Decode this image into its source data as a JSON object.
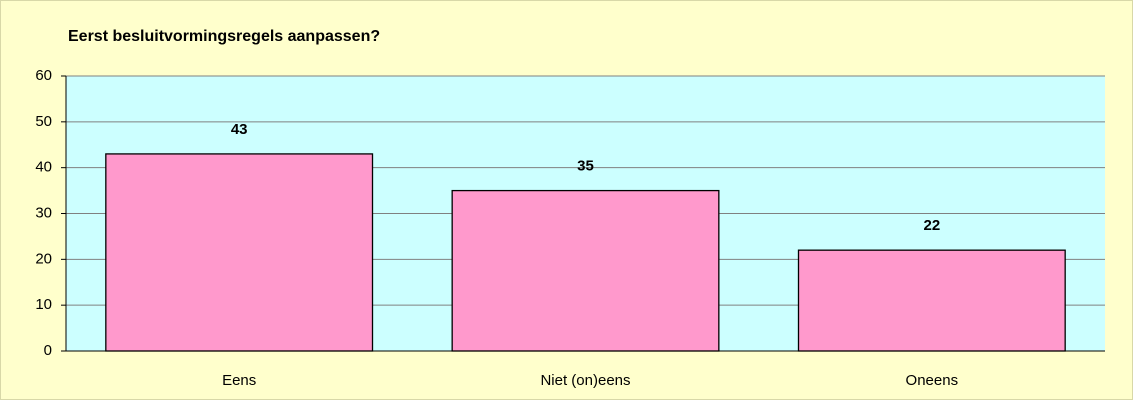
{
  "chart_data": {
    "type": "bar",
    "title": "Eerst besluitvormingsregels aanpassen?",
    "categories": [
      "Eens",
      "Niet (on)eens",
      "Oneens"
    ],
    "values": [
      43,
      35,
      22
    ],
    "color": "#ff99cc",
    "ylim": [
      0,
      60
    ],
    "yticks": [
      0,
      10,
      20,
      30,
      40,
      50,
      60
    ],
    "grid": true
  }
}
